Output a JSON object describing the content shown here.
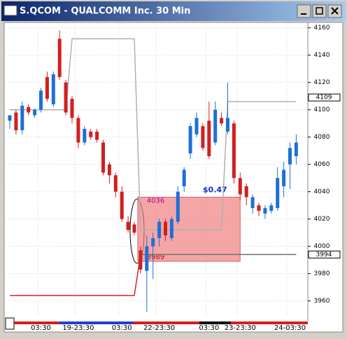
{
  "window": {
    "title": "S.QCOM - QUALCOMM Inc. 30 Min"
  },
  "chart_data": {
    "type": "candlestick",
    "open": [
      4092,
      4098,
      4085,
      4102,
      4096,
      4100,
      4124,
      4104,
      4152,
      4120,
      4108,
      4094,
      4076,
      4084,
      4084,
      4076,
      4060,
      4052,
      4040,
      4018,
      4016,
      3997,
      3982,
      4000,
      4006,
      4018,
      4006,
      4018,
      4044,
      4068,
      4082,
      4088,
      4092,
      4076,
      4094,
      4084,
      4090,
      4050,
      4044,
      4028,
      4030,
      4024,
      4026,
      4028,
      4044,
      4060,
      4066
    ],
    "high": [
      4096,
      4100,
      4106,
      4104,
      4101,
      4116,
      4128,
      4128,
      4158,
      4122,
      4110,
      4096,
      4088,
      4086,
      4086,
      4078,
      4062,
      4054,
      4044,
      4022,
      4018,
      4000,
      4008,
      4010,
      4020,
      4020,
      4022,
      4044,
      4058,
      4090,
      4098,
      4090,
      4106,
      4106,
      4098,
      4120,
      4092,
      4054,
      4046,
      4038,
      4032,
      4030,
      4032,
      4058,
      4062,
      4076,
      4082
    ],
    "low": [
      4086,
      4082,
      4082,
      4096,
      4094,
      4098,
      4106,
      4102,
      4122,
      4096,
      4090,
      4072,
      4074,
      4078,
      4076,
      4052,
      4046,
      4036,
      4018,
      4010,
      4008,
      3980,
      3952,
      3976,
      4000,
      4004,
      4004,
      4016,
      4040,
      4064,
      4080,
      4070,
      4064,
      4074,
      4088,
      4082,
      4046,
      4034,
      4030,
      4024,
      4022,
      4020,
      4024,
      4026,
      4036,
      4042,
      4060
    ],
    "close": [
      4096,
      4085,
      4103,
      4098,
      4100,
      4114,
      4108,
      4126,
      4124,
      4098,
      4094,
      4076,
      4086,
      4080,
      4078,
      4054,
      4052,
      4040,
      4020,
      4012,
      4010,
      3983,
      4000,
      4006,
      4018,
      4008,
      4020,
      4040,
      4056,
      4088,
      4094,
      4072,
      4066,
      4100,
      4090,
      4094,
      4050,
      4038,
      4036,
      4036,
      4026,
      4028,
      4030,
      4050,
      4056,
      4072,
      4076
    ],
    "up_color": "#1f6fd6",
    "down_color": "#d21f1f",
    "overlays": [
      {
        "color": "#b0b0b0",
        "values": [
          4100,
          4100,
          4100,
          4100,
          4100,
          4100,
          4100,
          4100,
          4100,
          4100,
          4152,
          4152,
          4152,
          4152,
          4152,
          4152,
          4152,
          4152,
          4152,
          4152,
          4152,
          4012,
          4012,
          4012,
          4012,
          4012,
          4012,
          4012,
          4012,
          4012,
          4012,
          4012,
          4012,
          4012,
          4012,
          4106,
          4106,
          4106,
          4106,
          4106,
          4106,
          4106,
          4106,
          4106,
          4106,
          4106,
          4106
        ]
      },
      {
        "color": "#e02020",
        "values": [
          3964,
          3964,
          3964,
          3964,
          3964,
          3964,
          3964,
          3964,
          3964,
          3964,
          3964,
          3964,
          3964,
          3964,
          3964,
          3964,
          3964,
          3964,
          3964,
          3964,
          3964,
          3994,
          null,
          null,
          null,
          null,
          null,
          null,
          null,
          null,
          null,
          null,
          null,
          null,
          null,
          null,
          null,
          null,
          null,
          null,
          null,
          null,
          null,
          null,
          null,
          null,
          null
        ]
      },
      {
        "color": "#707070",
        "values": [
          null,
          null,
          null,
          null,
          null,
          null,
          null,
          null,
          null,
          null,
          null,
          null,
          null,
          null,
          null,
          null,
          null,
          null,
          null,
          null,
          null,
          3994,
          3994,
          3994,
          3994,
          3994,
          3994,
          3994,
          3994,
          3994,
          3994,
          3994,
          3994,
          3994,
          3994,
          3994,
          3994,
          3994,
          3994,
          3994,
          3994,
          3994,
          3994,
          3994,
          3994,
          3994,
          3994
        ]
      }
    ],
    "highlight": {
      "high": 4036,
      "low": 3989,
      "change": {
        "value": 0.47,
        "label": "$0.47"
      }
    },
    "price_tags": [
      4109,
      3994
    ],
    "ylim": [
      3947,
      4165
    ],
    "yticks": [
      3960,
      3980,
      4000,
      4020,
      4040,
      4060,
      4080,
      4100,
      4120,
      4140,
      4160
    ],
    "xlabels": [
      "03:30",
      "19-23:30",
      "03:30",
      "22-23:30",
      "03:30",
      "23-23:30",
      "24-03:30"
    ]
  }
}
